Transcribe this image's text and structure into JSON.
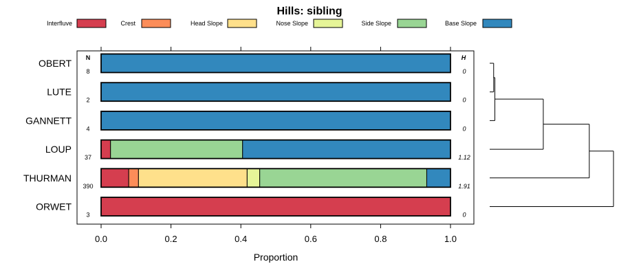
{
  "chart_data": {
    "type": "bar",
    "stacked": true,
    "orientation": "horizontal",
    "title": "Hills: sibling",
    "xlabel": "Proportion",
    "ylabel": "",
    "xlim": [
      0,
      1
    ],
    "x_ticks": [
      "0.0",
      "0.2",
      "0.4",
      "0.6",
      "0.8",
      "1.0"
    ],
    "legend": {
      "position": "top",
      "items": [
        {
          "name": "Interfluve",
          "color": "#d53e4f"
        },
        {
          "name": "Crest",
          "color": "#fc8d59"
        },
        {
          "name": "Head Slope",
          "color": "#fee08b"
        },
        {
          "name": "Nose Slope",
          "color": "#e6f598"
        },
        {
          "name": "Side Slope",
          "color": "#99d594"
        },
        {
          "name": "Base Slope",
          "color": "#3288bd"
        }
      ]
    },
    "n_header": "N",
    "h_header": "H",
    "categories": [
      "OBERT",
      "LUTE",
      "GANNETT",
      "LOUP",
      "THURMAN",
      "ORWET"
    ],
    "n_values": [
      "8",
      "2",
      "4",
      "37",
      "390",
      "3"
    ],
    "h_values": [
      "0",
      "0",
      "0",
      "1.12",
      "1.91",
      "0"
    ],
    "series": [
      {
        "name": "Interfluve",
        "values": [
          0,
          0,
          0,
          0.027,
          0.079,
          1.0
        ]
      },
      {
        "name": "Crest",
        "values": [
          0,
          0,
          0,
          0,
          0.028,
          0
        ]
      },
      {
        "name": "Head Slope",
        "values": [
          0,
          0,
          0,
          0,
          0.311,
          0
        ]
      },
      {
        "name": "Nose Slope",
        "values": [
          0,
          0,
          0,
          0,
          0.036,
          0
        ]
      },
      {
        "name": "Side Slope",
        "values": [
          0,
          0,
          0,
          0.378,
          0.478,
          0
        ]
      },
      {
        "name": "Base Slope",
        "values": [
          1.0,
          1.0,
          1.0,
          0.595,
          0.068,
          0
        ]
      }
    ],
    "dendrogram": {
      "leaves": [
        "OBERT",
        "LUTE",
        "GANNETT",
        "LOUP",
        "THURMAN",
        "ORWET"
      ],
      "merges": [
        {
          "left": "OBERT",
          "right": "LUTE",
          "height": 0.01
        },
        {
          "left": "OBERT+LUTE",
          "right": "GANNETT",
          "height": 0.02
        },
        {
          "left": "OBERT+LUTE+GANNETT",
          "right": "LOUP",
          "height": 0.42
        },
        {
          "left": "OBERT+LUTE+GANNETT+LOUP",
          "right": "THURMAN",
          "height": 0.8
        },
        {
          "left": "OBERT+LUTE+GANNETT+LOUP+THURMAN",
          "right": "ORWET",
          "height": 1.0
        }
      ]
    }
  }
}
